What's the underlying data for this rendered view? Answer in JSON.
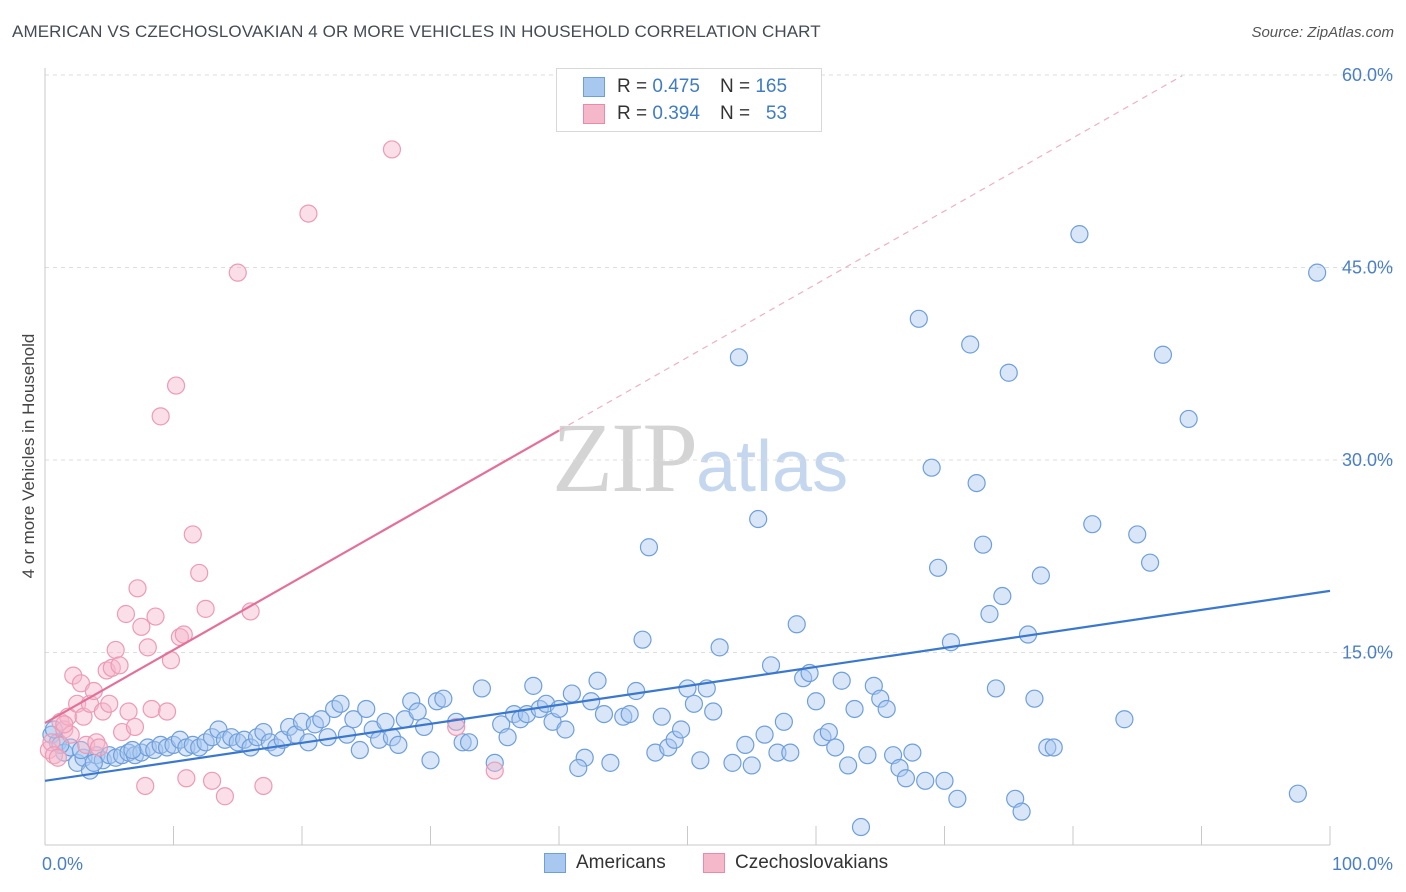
{
  "header": {
    "title": "AMERICAN VS CZECHOSLOVAKIAN 4 OR MORE VEHICLES IN HOUSEHOLD CORRELATION CHART",
    "source": "Source: ZipAtlas.com"
  },
  "legend": {
    "rows": [
      {
        "r_label": "R =",
        "r_value": "0.475",
        "n_label": "N =",
        "n_value": "165",
        "color": "#a9c8ef"
      },
      {
        "r_label": "R =",
        "r_value": "0.394",
        "n_label": "N =",
        "n_value": "53",
        "color": "#f5b8cb"
      }
    ]
  },
  "bottom_legend": [
    "Americans",
    "Czechoslovakians"
  ],
  "watermark": {
    "zip": "ZIP",
    "atlas": "atlas"
  },
  "colors": {
    "americans": "#4a86d4",
    "czech": "#e87ca0",
    "americans_fill": "#a9c8ef",
    "czech_fill": "#f5b8cb"
  },
  "chart_data": {
    "type": "scatter",
    "title": "AMERICAN VS CZECHOSLOVAKIAN 4 OR MORE VEHICLES IN HOUSEHOLD CORRELATION CHART",
    "xlabel": "",
    "ylabel": "4 or more Vehicles in Household",
    "xlim": [
      0,
      100
    ],
    "ylim": [
      0,
      63
    ],
    "x_tick_labels": [
      "0.0%",
      "100.0%"
    ],
    "y_ticks": [
      15,
      30,
      45,
      60
    ],
    "y_tick_labels": [
      "15.0%",
      "30.0%",
      "45.0%",
      "60.0%"
    ],
    "grid": true,
    "series": [
      {
        "name": "Americans",
        "r": 0.475,
        "n": 165,
        "trend": {
          "x": [
            0,
            100
          ],
          "y": [
            5.0,
            19.8
          ]
        },
        "points": [
          [
            0.5,
            8.6
          ],
          [
            1.0,
            8.0
          ],
          [
            1.5,
            7.2
          ],
          [
            2.0,
            7.6
          ],
          [
            2.5,
            6.4
          ],
          [
            3.0,
            6.8
          ],
          [
            3.5,
            5.8
          ],
          [
            4.0,
            7.0
          ],
          [
            4.5,
            6.6
          ],
          [
            5.0,
            7.0
          ],
          [
            5.5,
            6.8
          ],
          [
            6.0,
            7.0
          ],
          [
            6.5,
            7.2
          ],
          [
            7.0,
            7.0
          ],
          [
            7.5,
            7.2
          ],
          [
            8.0,
            7.6
          ],
          [
            8.5,
            7.4
          ],
          [
            9.0,
            7.8
          ],
          [
            9.5,
            7.6
          ],
          [
            10.0,
            7.8
          ],
          [
            10.5,
            8.2
          ],
          [
            11.0,
            7.6
          ],
          [
            11.5,
            7.8
          ],
          [
            12.0,
            7.6
          ],
          [
            12.5,
            8.0
          ],
          [
            13.0,
            8.4
          ],
          [
            13.5,
            9.0
          ],
          [
            14.0,
            8.2
          ],
          [
            14.5,
            8.4
          ],
          [
            15.0,
            8.0
          ],
          [
            15.5,
            8.2
          ],
          [
            16.0,
            7.6
          ],
          [
            16.5,
            8.4
          ],
          [
            17.0,
            8.8
          ],
          [
            17.5,
            8.0
          ],
          [
            18.0,
            7.6
          ],
          [
            18.5,
            8.2
          ],
          [
            19.0,
            9.2
          ],
          [
            19.5,
            8.6
          ],
          [
            20.0,
            9.6
          ],
          [
            20.5,
            8.0
          ],
          [
            21.0,
            9.4
          ],
          [
            21.5,
            9.8
          ],
          [
            22.0,
            8.4
          ],
          [
            22.5,
            10.6
          ],
          [
            23.0,
            11.0
          ],
          [
            23.5,
            8.6
          ],
          [
            24.0,
            9.8
          ],
          [
            24.5,
            7.4
          ],
          [
            25.0,
            10.6
          ],
          [
            25.5,
            9.0
          ],
          [
            26.0,
            8.2
          ],
          [
            26.5,
            9.6
          ],
          [
            27.0,
            8.4
          ],
          [
            27.5,
            7.8
          ],
          [
            28.0,
            9.8
          ],
          [
            28.5,
            11.2
          ],
          [
            29.0,
            10.4
          ],
          [
            29.5,
            9.2
          ],
          [
            30.0,
            6.6
          ],
          [
            30.5,
            11.2
          ],
          [
            31.0,
            11.4
          ],
          [
            32.0,
            9.6
          ],
          [
            32.5,
            8.0
          ],
          [
            33.0,
            8.0
          ],
          [
            34.0,
            12.2
          ],
          [
            35.0,
            6.4
          ],
          [
            35.5,
            9.4
          ],
          [
            36.0,
            8.4
          ],
          [
            36.5,
            10.2
          ],
          [
            37.0,
            9.8
          ],
          [
            37.5,
            10.2
          ],
          [
            38.0,
            12.4
          ],
          [
            38.5,
            10.6
          ],
          [
            39.0,
            11.0
          ],
          [
            39.5,
            9.6
          ],
          [
            40.0,
            10.6
          ],
          [
            40.5,
            9.0
          ],
          [
            41.0,
            11.8
          ],
          [
            42.0,
            6.8
          ],
          [
            42.5,
            11.2
          ],
          [
            43.0,
            12.8
          ],
          [
            43.5,
            10.2
          ],
          [
            44.0,
            6.4
          ],
          [
            45.0,
            10.0
          ],
          [
            45.5,
            10.2
          ],
          [
            46.0,
            12.0
          ],
          [
            46.5,
            16.0
          ],
          [
            47.0,
            23.2
          ],
          [
            47.5,
            7.2
          ],
          [
            48.0,
            10.0
          ],
          [
            48.5,
            7.6
          ],
          [
            49.0,
            8.2
          ],
          [
            49.5,
            9.0
          ],
          [
            50.0,
            12.2
          ],
          [
            50.5,
            11.0
          ],
          [
            51.0,
            6.6
          ],
          [
            51.5,
            12.2
          ],
          [
            52.0,
            10.4
          ],
          [
            52.5,
            15.4
          ],
          [
            53.5,
            6.4
          ],
          [
            54.0,
            38.0
          ],
          [
            54.5,
            7.8
          ],
          [
            55.0,
            6.2
          ],
          [
            55.5,
            25.4
          ],
          [
            56.0,
            8.6
          ],
          [
            56.5,
            14.0
          ],
          [
            57.0,
            7.2
          ],
          [
            57.5,
            9.6
          ],
          [
            58.0,
            7.2
          ],
          [
            58.5,
            17.2
          ],
          [
            59.0,
            13.0
          ],
          [
            59.5,
            13.4
          ],
          [
            60.0,
            11.2
          ],
          [
            60.5,
            8.4
          ],
          [
            61.0,
            8.8
          ],
          [
            61.5,
            7.6
          ],
          [
            62.0,
            12.8
          ],
          [
            62.5,
            6.2
          ],
          [
            63.0,
            10.6
          ],
          [
            63.5,
            1.4
          ],
          [
            64.0,
            7.0
          ],
          [
            64.5,
            12.4
          ],
          [
            65.0,
            11.4
          ],
          [
            65.5,
            10.6
          ],
          [
            66.0,
            7.0
          ],
          [
            66.5,
            6.0
          ],
          [
            67.0,
            5.2
          ],
          [
            67.5,
            7.2
          ],
          [
            68.0,
            41.0
          ],
          [
            68.5,
            5.0
          ],
          [
            69.0,
            29.4
          ],
          [
            69.5,
            21.6
          ],
          [
            70.0,
            5.0
          ],
          [
            70.5,
            15.8
          ],
          [
            71.0,
            3.6
          ],
          [
            72.0,
            39.0
          ],
          [
            72.5,
            28.2
          ],
          [
            73.0,
            23.4
          ],
          [
            73.5,
            18.0
          ],
          [
            74.0,
            12.2
          ],
          [
            74.5,
            19.4
          ],
          [
            75.0,
            36.8
          ],
          [
            75.5,
            3.6
          ],
          [
            76.0,
            2.6
          ],
          [
            76.5,
            16.4
          ],
          [
            77.0,
            11.4
          ],
          [
            77.5,
            21.0
          ],
          [
            78.0,
            7.6
          ],
          [
            78.5,
            7.6
          ],
          [
            80.5,
            47.6
          ],
          [
            81.5,
            25.0
          ],
          [
            84.0,
            9.8
          ],
          [
            85.0,
            24.2
          ],
          [
            86.0,
            22.0
          ],
          [
            87.0,
            38.2
          ],
          [
            89.0,
            33.2
          ],
          [
            97.5,
            4.0
          ],
          [
            99.0,
            44.6
          ],
          [
            0.7,
            9.0
          ],
          [
            1.2,
            7.8
          ],
          [
            2.8,
            7.4
          ],
          [
            3.8,
            6.4
          ],
          [
            6.8,
            7.4
          ],
          [
            41.5,
            6.0
          ]
        ]
      },
      {
        "name": "Czechoslovakians",
        "r": 0.394,
        "n": 53,
        "trend": {
          "x": [
            0,
            40
          ],
          "y": [
            9.5,
            32.3
          ]
        },
        "points": [
          [
            0.3,
            7.4
          ],
          [
            0.5,
            8.0
          ],
          [
            0.7,
            7.0
          ],
          [
            1.0,
            6.8
          ],
          [
            1.2,
            9.6
          ],
          [
            1.5,
            9.0
          ],
          [
            1.8,
            10.0
          ],
          [
            2.0,
            8.6
          ],
          [
            2.2,
            13.2
          ],
          [
            2.5,
            11.0
          ],
          [
            2.8,
            12.6
          ],
          [
            3.0,
            10.0
          ],
          [
            3.2,
            7.8
          ],
          [
            3.5,
            11.0
          ],
          [
            3.8,
            12.0
          ],
          [
            4.0,
            8.0
          ],
          [
            4.2,
            7.6
          ],
          [
            4.5,
            10.4
          ],
          [
            4.8,
            13.6
          ],
          [
            5.0,
            11.0
          ],
          [
            5.2,
            13.8
          ],
          [
            5.5,
            15.2
          ],
          [
            5.8,
            14.0
          ],
          [
            6.0,
            8.8
          ],
          [
            6.3,
            18.0
          ],
          [
            6.5,
            10.4
          ],
          [
            7.0,
            9.2
          ],
          [
            7.2,
            20.0
          ],
          [
            7.5,
            17.0
          ],
          [
            7.8,
            4.6
          ],
          [
            8.0,
            15.4
          ],
          [
            8.3,
            10.6
          ],
          [
            8.6,
            17.8
          ],
          [
            9.0,
            33.4
          ],
          [
            9.5,
            10.4
          ],
          [
            9.8,
            14.4
          ],
          [
            10.2,
            35.8
          ],
          [
            10.5,
            16.2
          ],
          [
            10.8,
            16.4
          ],
          [
            11.0,
            5.2
          ],
          [
            11.5,
            24.2
          ],
          [
            12.0,
            21.2
          ],
          [
            12.5,
            18.4
          ],
          [
            13.0,
            5.0
          ],
          [
            14.0,
            3.8
          ],
          [
            15.0,
            44.6
          ],
          [
            16.0,
            18.2
          ],
          [
            17.0,
            4.6
          ],
          [
            20.5,
            49.2
          ],
          [
            27.0,
            54.2
          ],
          [
            32.0,
            9.2
          ],
          [
            35.0,
            5.8
          ],
          [
            1.5,
            9.4
          ]
        ]
      }
    ]
  }
}
